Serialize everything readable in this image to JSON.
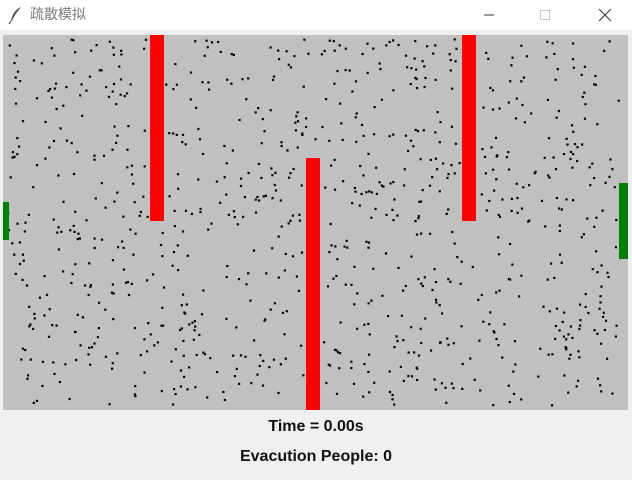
{
  "window": {
    "title": "疏散模拟",
    "icon": "feather-icon",
    "controls": [
      "minimize-icon",
      "maximize-icon",
      "close-icon"
    ]
  },
  "simulation": {
    "background_color": "#c0c0c0",
    "wall_color": "#ff0000",
    "exit_color": "#008000",
    "person_color": "#000000"
  },
  "status": {
    "time_text": "Time = 0.00s",
    "evacuation_text": "Evacution People: 0"
  }
}
